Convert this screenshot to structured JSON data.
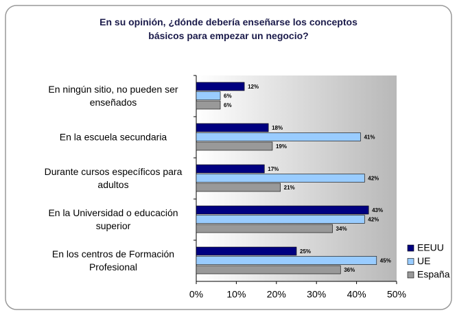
{
  "chart_data": {
    "type": "hbar",
    "title": "En su opinión, ¿dónde debería enseñarse los conceptos\nbásicos para empezar un negocio?",
    "categories": [
      "En ningún sitio, no pueden ser\nenseñados",
      "En la escuela secundaria",
      "Durante cursos específicos para\nadultos",
      "En la Universidad o educación\nsuperior",
      "En los centros de Formación\nProfesional"
    ],
    "series": [
      {
        "name": "EEUU",
        "color": "#000080",
        "values": [
          12,
          18,
          17,
          43,
          25
        ],
        "value_labels": [
          "12%",
          "18%",
          "17%",
          "43%",
          "25%"
        ]
      },
      {
        "name": "UE",
        "color": "#99ccff",
        "values": [
          6,
          41,
          42,
          42,
          45
        ],
        "value_labels": [
          "6%",
          "41%",
          "42%",
          "42%",
          "45%"
        ]
      },
      {
        "name": "España",
        "color": "#999999",
        "values": [
          6,
          19,
          21,
          34,
          36
        ],
        "value_labels": [
          "6%",
          "19%",
          "21%",
          "34%",
          "36%"
        ]
      }
    ],
    "xlim": [
      0,
      50
    ],
    "xticks": [
      {
        "value": 0,
        "label": "0%"
      },
      {
        "value": 10,
        "label": "10%"
      },
      {
        "value": 20,
        "label": "20%"
      },
      {
        "value": 30,
        "label": "30%"
      },
      {
        "value": 40,
        "label": "40%"
      },
      {
        "value": 50,
        "label": "50%"
      }
    ],
    "legend": "right"
  }
}
